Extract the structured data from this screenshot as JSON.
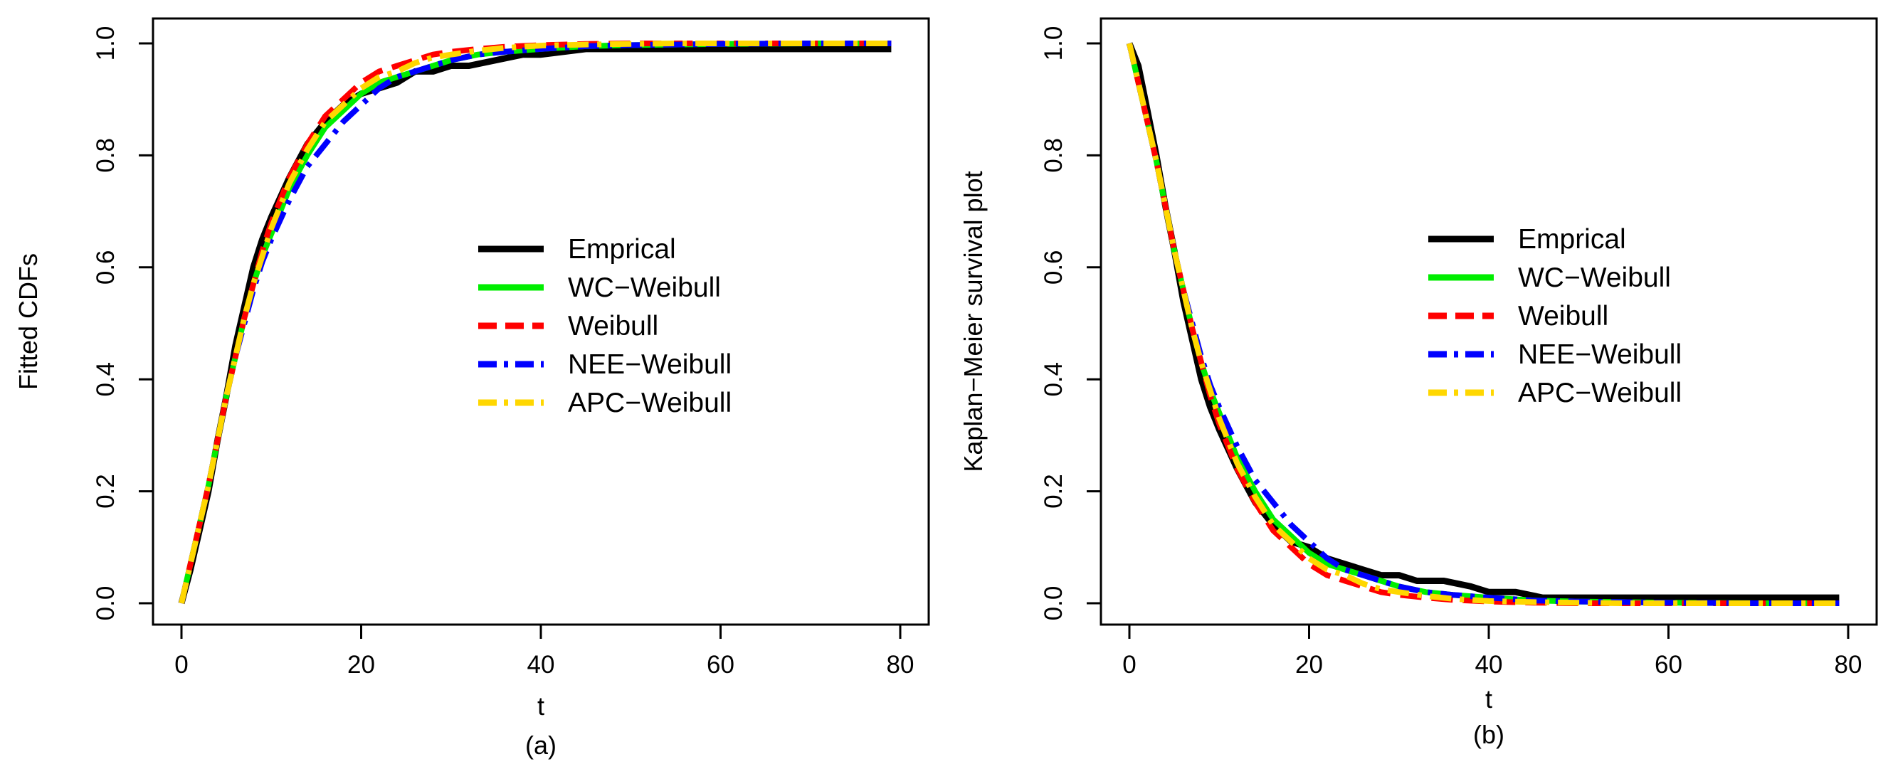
{
  "colors": {
    "empirical": "#000000",
    "wc_weibull": "#00ee00",
    "weibull": "#ff0000",
    "nee_weibull": "#0000ff",
    "apc_weibull": "#ffd700"
  },
  "chart_data": [
    {
      "type": "line",
      "panel": "(a)",
      "xlabel": "t",
      "ylabel": "Fitted CDFs",
      "xlim": [
        0,
        80
      ],
      "ylim": [
        0,
        1
      ],
      "xticks": [
        "0",
        "20",
        "40",
        "60",
        "80"
      ],
      "yticks": [
        "0.0",
        "0.2",
        "0.4",
        "0.6",
        "0.8",
        "1.0"
      ],
      "legend_position": "center-right",
      "series": [
        {
          "name": "Emprical",
          "style": "solid",
          "x": [
            0,
            1,
            2,
            3,
            4,
            5,
            6,
            7,
            8,
            9,
            10,
            12,
            14,
            16,
            18,
            20,
            22,
            24,
            26,
            28,
            30,
            32,
            35,
            38,
            40,
            45,
            50,
            55,
            60,
            70,
            79
          ],
          "y": [
            0.0,
            0.06,
            0.13,
            0.2,
            0.29,
            0.37,
            0.46,
            0.53,
            0.6,
            0.65,
            0.69,
            0.76,
            0.82,
            0.86,
            0.89,
            0.91,
            0.92,
            0.93,
            0.95,
            0.95,
            0.96,
            0.96,
            0.97,
            0.98,
            0.98,
            0.99,
            0.99,
            0.99,
            0.99,
            0.99,
            0.99
          ]
        },
        {
          "name": "WC−Weibull",
          "style": "solid",
          "x": [
            0,
            1,
            2,
            3,
            4,
            5,
            6,
            7,
            8,
            9,
            10,
            12,
            14,
            16,
            18,
            20,
            22,
            24,
            26,
            28,
            30,
            33,
            36,
            40,
            45,
            50,
            55,
            60,
            70,
            79
          ],
          "y": [
            0.0,
            0.07,
            0.14,
            0.21,
            0.29,
            0.37,
            0.44,
            0.51,
            0.57,
            0.62,
            0.66,
            0.74,
            0.8,
            0.85,
            0.88,
            0.91,
            0.93,
            0.94,
            0.95,
            0.96,
            0.97,
            0.98,
            0.985,
            0.99,
            0.995,
            0.997,
            0.998,
            0.999,
            1.0,
            1.0
          ]
        },
        {
          "name": "Weibull",
          "style": "dash",
          "x": [
            0,
            1,
            2,
            3,
            4,
            5,
            6,
            7,
            8,
            9,
            10,
            12,
            14,
            16,
            18,
            20,
            22,
            24,
            26,
            28,
            30,
            33,
            36,
            40,
            45,
            50,
            55,
            60,
            70,
            79
          ],
          "y": [
            0.0,
            0.07,
            0.14,
            0.21,
            0.29,
            0.37,
            0.44,
            0.51,
            0.57,
            0.63,
            0.68,
            0.76,
            0.82,
            0.87,
            0.9,
            0.93,
            0.95,
            0.96,
            0.97,
            0.98,
            0.985,
            0.99,
            0.994,
            0.997,
            0.999,
            1.0,
            1.0,
            1.0,
            1.0,
            1.0
          ]
        },
        {
          "name": "NEE−Weibull",
          "style": "dashdot",
          "x": [
            0,
            1,
            2,
            3,
            4,
            5,
            6,
            7,
            8,
            9,
            10,
            12,
            14,
            16,
            18,
            20,
            22,
            24,
            26,
            28,
            30,
            33,
            36,
            40,
            45,
            50,
            55,
            60,
            70,
            79
          ],
          "y": [
            0.0,
            0.07,
            0.14,
            0.21,
            0.29,
            0.37,
            0.44,
            0.5,
            0.56,
            0.61,
            0.65,
            0.72,
            0.78,
            0.82,
            0.86,
            0.89,
            0.92,
            0.94,
            0.95,
            0.96,
            0.97,
            0.98,
            0.985,
            0.99,
            0.995,
            0.997,
            0.998,
            0.999,
            1.0,
            1.0
          ]
        },
        {
          "name": "APC−Weibull",
          "style": "dashdot",
          "x": [
            0,
            1,
            2,
            3,
            4,
            5,
            6,
            7,
            8,
            9,
            10,
            12,
            14,
            16,
            18,
            20,
            22,
            24,
            26,
            28,
            30,
            33,
            36,
            40,
            45,
            50,
            55,
            60,
            70,
            79
          ],
          "y": [
            0.0,
            0.07,
            0.14,
            0.21,
            0.29,
            0.37,
            0.44,
            0.51,
            0.57,
            0.62,
            0.67,
            0.75,
            0.81,
            0.86,
            0.89,
            0.92,
            0.94,
            0.95,
            0.965,
            0.975,
            0.98,
            0.987,
            0.992,
            0.996,
            0.998,
            0.999,
            1.0,
            1.0,
            1.0,
            1.0
          ]
        }
      ]
    },
    {
      "type": "line",
      "panel": "(b)",
      "xlabel": "t",
      "ylabel": "Kaplan−Meier survival plot",
      "xlim": [
        0,
        80
      ],
      "ylim": [
        0,
        1
      ],
      "xticks": [
        "0",
        "20",
        "40",
        "60",
        "80"
      ],
      "yticks": [
        "0.0",
        "0.2",
        "0.4",
        "0.6",
        "0.8",
        "1.0"
      ],
      "legend_position": "center-right",
      "series": [
        {
          "name": "Emprical",
          "style": "solid",
          "x": [
            0,
            1,
            2,
            3,
            4,
            5,
            6,
            7,
            8,
            9,
            10,
            12,
            14,
            16,
            18,
            20,
            22,
            24,
            26,
            28,
            30,
            32,
            35,
            38,
            40,
            43,
            46,
            50,
            60,
            70,
            79
          ],
          "y": [
            1.0,
            0.96,
            0.88,
            0.8,
            0.71,
            0.63,
            0.54,
            0.47,
            0.4,
            0.35,
            0.31,
            0.24,
            0.18,
            0.14,
            0.11,
            0.1,
            0.08,
            0.07,
            0.06,
            0.05,
            0.05,
            0.04,
            0.04,
            0.03,
            0.02,
            0.02,
            0.01,
            0.01,
            0.01,
            0.01,
            0.01
          ]
        },
        {
          "name": "WC−Weibull",
          "style": "solid",
          "x": [
            0,
            1,
            2,
            3,
            4,
            5,
            6,
            7,
            8,
            9,
            10,
            12,
            14,
            16,
            18,
            20,
            22,
            24,
            26,
            28,
            30,
            33,
            36,
            40,
            45,
            50,
            55,
            60,
            70,
            79
          ],
          "y": [
            1.0,
            0.93,
            0.86,
            0.79,
            0.71,
            0.63,
            0.56,
            0.49,
            0.43,
            0.38,
            0.34,
            0.26,
            0.2,
            0.15,
            0.12,
            0.09,
            0.07,
            0.06,
            0.05,
            0.04,
            0.03,
            0.02,
            0.015,
            0.01,
            0.005,
            0.003,
            0.002,
            0.001,
            0.0,
            0.0
          ]
        },
        {
          "name": "Weibull",
          "style": "dash",
          "x": [
            0,
            1,
            2,
            3,
            4,
            5,
            6,
            7,
            8,
            9,
            10,
            12,
            14,
            16,
            18,
            20,
            22,
            24,
            26,
            28,
            30,
            33,
            36,
            40,
            45,
            50,
            55,
            60,
            70,
            79
          ],
          "y": [
            1.0,
            0.93,
            0.86,
            0.79,
            0.71,
            0.63,
            0.56,
            0.49,
            0.43,
            0.37,
            0.32,
            0.24,
            0.18,
            0.13,
            0.1,
            0.07,
            0.05,
            0.04,
            0.03,
            0.02,
            0.015,
            0.01,
            0.006,
            0.003,
            0.001,
            0.0,
            0.0,
            0.0,
            0.0,
            0.0
          ]
        },
        {
          "name": "NEE−Weibull",
          "style": "dashdot",
          "x": [
            0,
            1,
            2,
            3,
            4,
            5,
            6,
            7,
            8,
            9,
            10,
            12,
            14,
            16,
            18,
            20,
            22,
            24,
            26,
            28,
            30,
            33,
            36,
            40,
            45,
            50,
            55,
            60,
            70,
            79
          ],
          "y": [
            1.0,
            0.93,
            0.86,
            0.79,
            0.71,
            0.63,
            0.56,
            0.5,
            0.44,
            0.39,
            0.35,
            0.28,
            0.22,
            0.18,
            0.14,
            0.11,
            0.08,
            0.06,
            0.05,
            0.04,
            0.03,
            0.02,
            0.015,
            0.01,
            0.005,
            0.003,
            0.002,
            0.001,
            0.0,
            0.0
          ]
        },
        {
          "name": "APC−Weibull",
          "style": "dashdot",
          "x": [
            0,
            1,
            2,
            3,
            4,
            5,
            6,
            7,
            8,
            9,
            10,
            12,
            14,
            16,
            18,
            20,
            22,
            24,
            26,
            28,
            30,
            33,
            36,
            40,
            45,
            50,
            55,
            60,
            70,
            79
          ],
          "y": [
            1.0,
            0.93,
            0.86,
            0.79,
            0.71,
            0.63,
            0.56,
            0.49,
            0.43,
            0.38,
            0.33,
            0.25,
            0.19,
            0.14,
            0.11,
            0.08,
            0.06,
            0.05,
            0.035,
            0.025,
            0.02,
            0.013,
            0.008,
            0.004,
            0.002,
            0.001,
            0.0,
            0.0,
            0.0,
            0.0
          ]
        }
      ]
    }
  ]
}
